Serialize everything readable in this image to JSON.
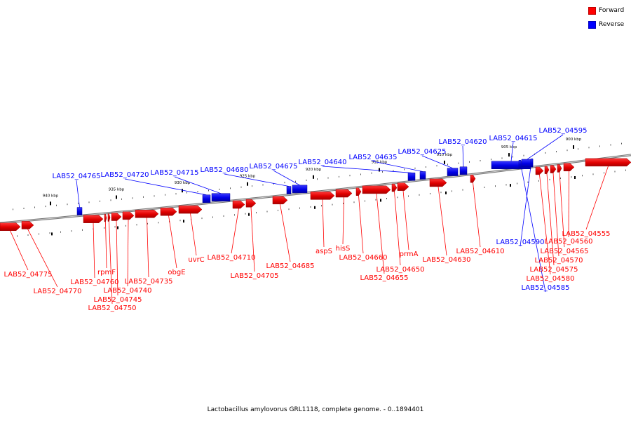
{
  "caption": "Lactobacillus amylovorus GRL1118, complete genome. - 0..1894401",
  "legend": [
    {
      "label": "Forward",
      "color": "#ff0000"
    },
    {
      "label": "Reverse",
      "color": "#0000ff"
    }
  ],
  "ticks": [
    "940 kbp",
    "935 kbp",
    "930 kbp",
    "925 kbp",
    "920 kbp",
    "915 kbp",
    "910 kbp",
    "905 kbp",
    "900 kbp"
  ],
  "genes": [
    {
      "label": "LAB52_04775",
      "strand": "forward"
    },
    {
      "label": "LAB52_04770",
      "strand": "forward"
    },
    {
      "label": "LAB52_04765",
      "strand": "reverse"
    },
    {
      "label": "LAB52_04760",
      "strand": "forward"
    },
    {
      "label": "rpmF",
      "strand": "forward"
    },
    {
      "label": "LAB52_04750",
      "strand": "forward"
    },
    {
      "label": "LAB52_04745",
      "strand": "forward"
    },
    {
      "label": "LAB52_04740",
      "strand": "forward"
    },
    {
      "label": "LAB52_04735",
      "strand": "forward"
    },
    {
      "label": "LAB52_04720",
      "strand": "reverse"
    },
    {
      "label": "obgE",
      "strand": "forward"
    },
    {
      "label": "LAB52_04715",
      "strand": "reverse"
    },
    {
      "label": "uvrC",
      "strand": "forward"
    },
    {
      "label": "LAB52_04680",
      "strand": "reverse"
    },
    {
      "label": "LAB52_04710",
      "strand": "forward"
    },
    {
      "label": "LAB52_04705",
      "strand": "forward"
    },
    {
      "label": "LAB52_04675",
      "strand": "reverse"
    },
    {
      "label": "LAB52_04685",
      "strand": "forward"
    },
    {
      "label": "LAB52_04640",
      "strand": "reverse"
    },
    {
      "label": "aspS",
      "strand": "forward"
    },
    {
      "label": "hisS",
      "strand": "forward"
    },
    {
      "label": "LAB52_04660",
      "strand": "forward"
    },
    {
      "label": "LAB52_04655",
      "strand": "forward"
    },
    {
      "label": "LAB52_04650",
      "strand": "forward"
    },
    {
      "label": "LAB52_04635",
      "strand": "reverse"
    },
    {
      "label": "prmA",
      "strand": "forward"
    },
    {
      "label": "LAB52_04625",
      "strand": "reverse"
    },
    {
      "label": "LAB52_04630",
      "strand": "forward"
    },
    {
      "label": "LAB52_04620",
      "strand": "reverse"
    },
    {
      "label": "LAB52_04610",
      "strand": "forward"
    },
    {
      "label": "LAB52_04615",
      "strand": "reverse"
    },
    {
      "label": "LAB52_04595",
      "strand": "reverse"
    },
    {
      "label": "LAB52_04590",
      "strand": "reverse"
    },
    {
      "label": "LAB52_04585",
      "strand": "reverse"
    },
    {
      "label": "LAB52_04580",
      "strand": "forward"
    },
    {
      "label": "LAB52_04575",
      "strand": "forward"
    },
    {
      "label": "LAB52_04570",
      "strand": "forward"
    },
    {
      "label": "LAB52_04565",
      "strand": "forward"
    },
    {
      "label": "LAB52_04560",
      "strand": "forward"
    },
    {
      "label": "LAB52_04555",
      "strand": "forward"
    }
  ]
}
